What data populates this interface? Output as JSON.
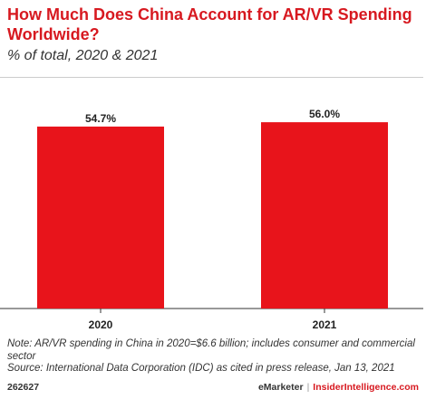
{
  "chart_title": "How Much Does China Account for AR/VR Spending Worldwide?",
  "chart_subtitle": "% of total, 2020 & 2021",
  "note": "Note: AR/VR spending in China in 2020=$6.6 billion; includes consumer and commercial sector",
  "source": "Source: International Data Corporation (IDC) as cited in press release, Jan 13, 2021",
  "footer": {
    "id": "262627",
    "brand_left": "eMarketer",
    "separator": "|",
    "brand_right": "InsiderIntelligence.com"
  },
  "colors": {
    "bar": "#e8141b",
    "title": "#d71920",
    "axis": "#333333"
  },
  "chart_data": {
    "type": "bar",
    "categories": [
      "2020",
      "2021"
    ],
    "values": [
      54.7,
      56.0
    ],
    "value_labels": [
      "54.7%",
      "56.0%"
    ],
    "title": "How Much Does China Account for AR/VR Spending Worldwide?",
    "subtitle": "% of total, 2020 & 2021",
    "xlabel": "",
    "ylabel": "",
    "ylim": [
      0,
      65
    ],
    "grid": false,
    "legend": "none"
  }
}
